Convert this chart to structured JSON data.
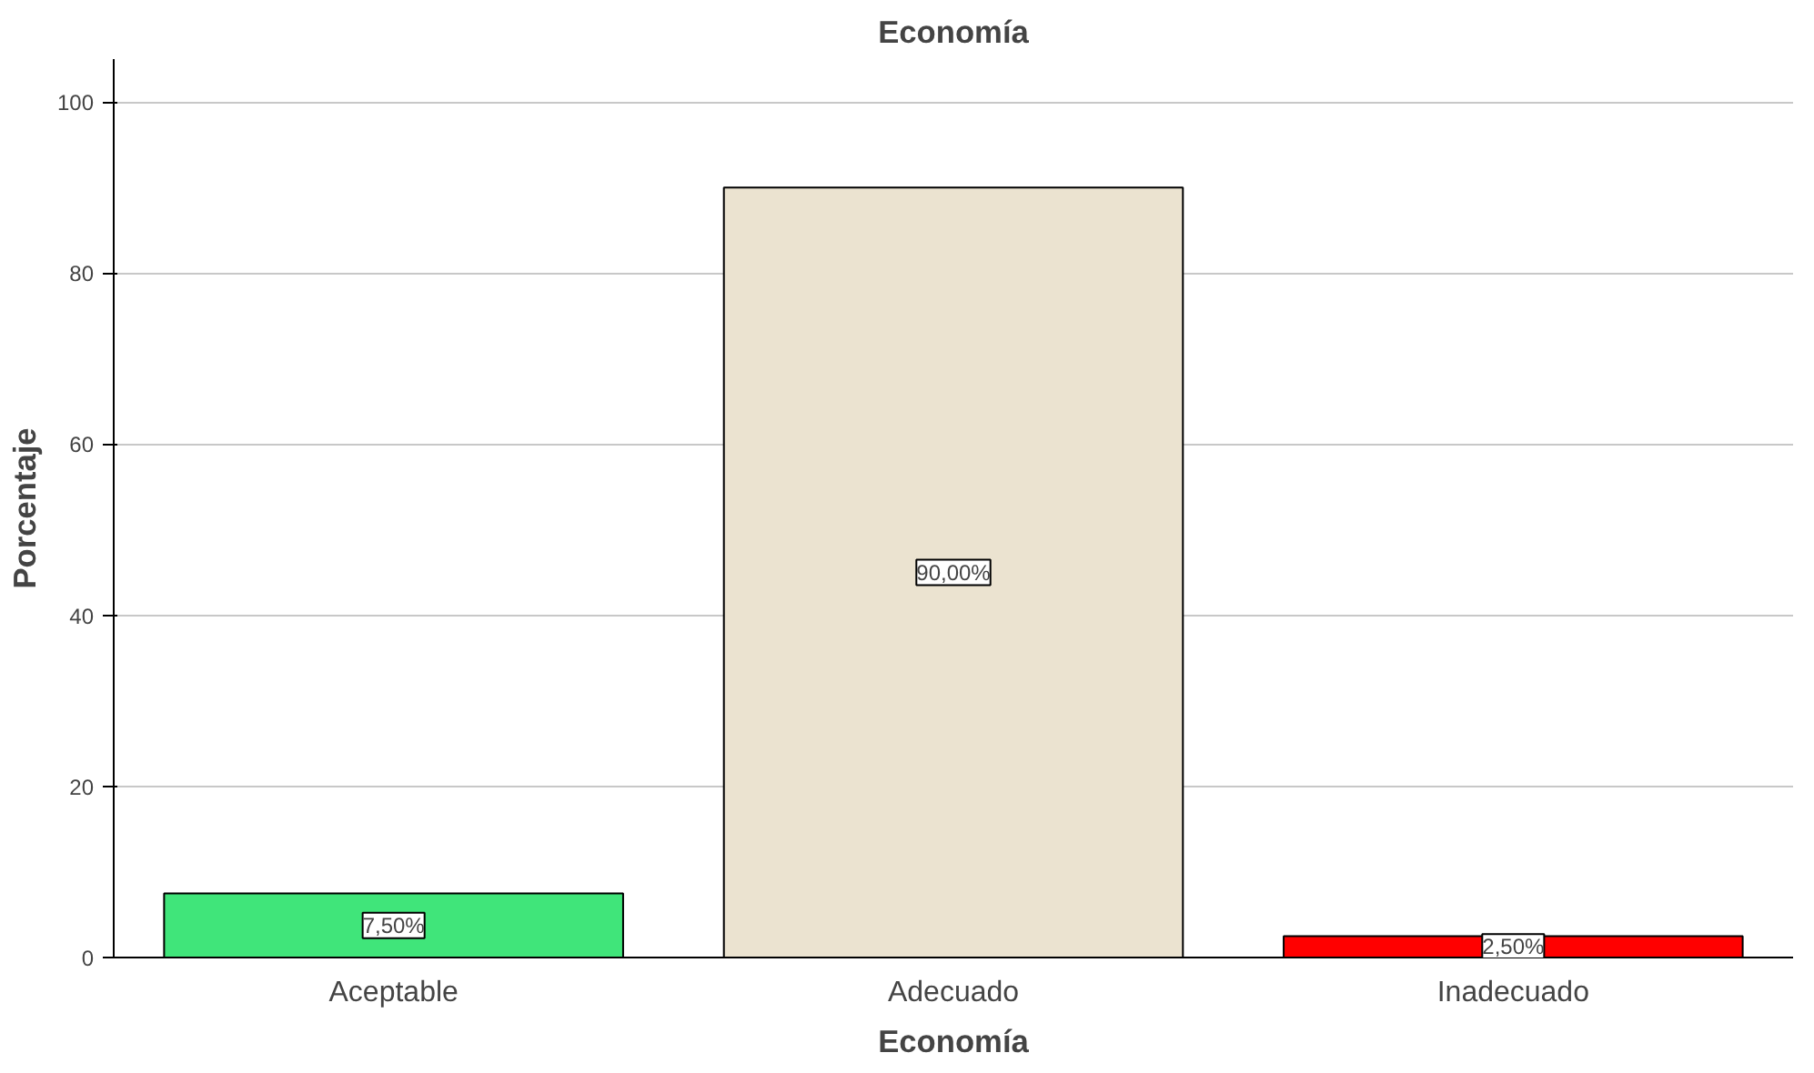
{
  "chart_data": {
    "type": "bar",
    "title": "Economía",
    "xlabel": "Economía",
    "ylabel": "Porcentaje",
    "categories": [
      "Aceptable",
      "Adecuado",
      "Inadecuado"
    ],
    "values": [
      7.5,
      90,
      2.5
    ],
    "colors": [
      "#40e57a",
      "#ebe3d0",
      "#ff0000"
    ],
    "value_labels": [
      "7,50%",
      "90,00%",
      "2,50%"
    ],
    "ylim": [
      0,
      105
    ],
    "yticks": [
      0,
      20,
      40,
      60,
      80,
      100
    ],
    "grid": "y"
  }
}
